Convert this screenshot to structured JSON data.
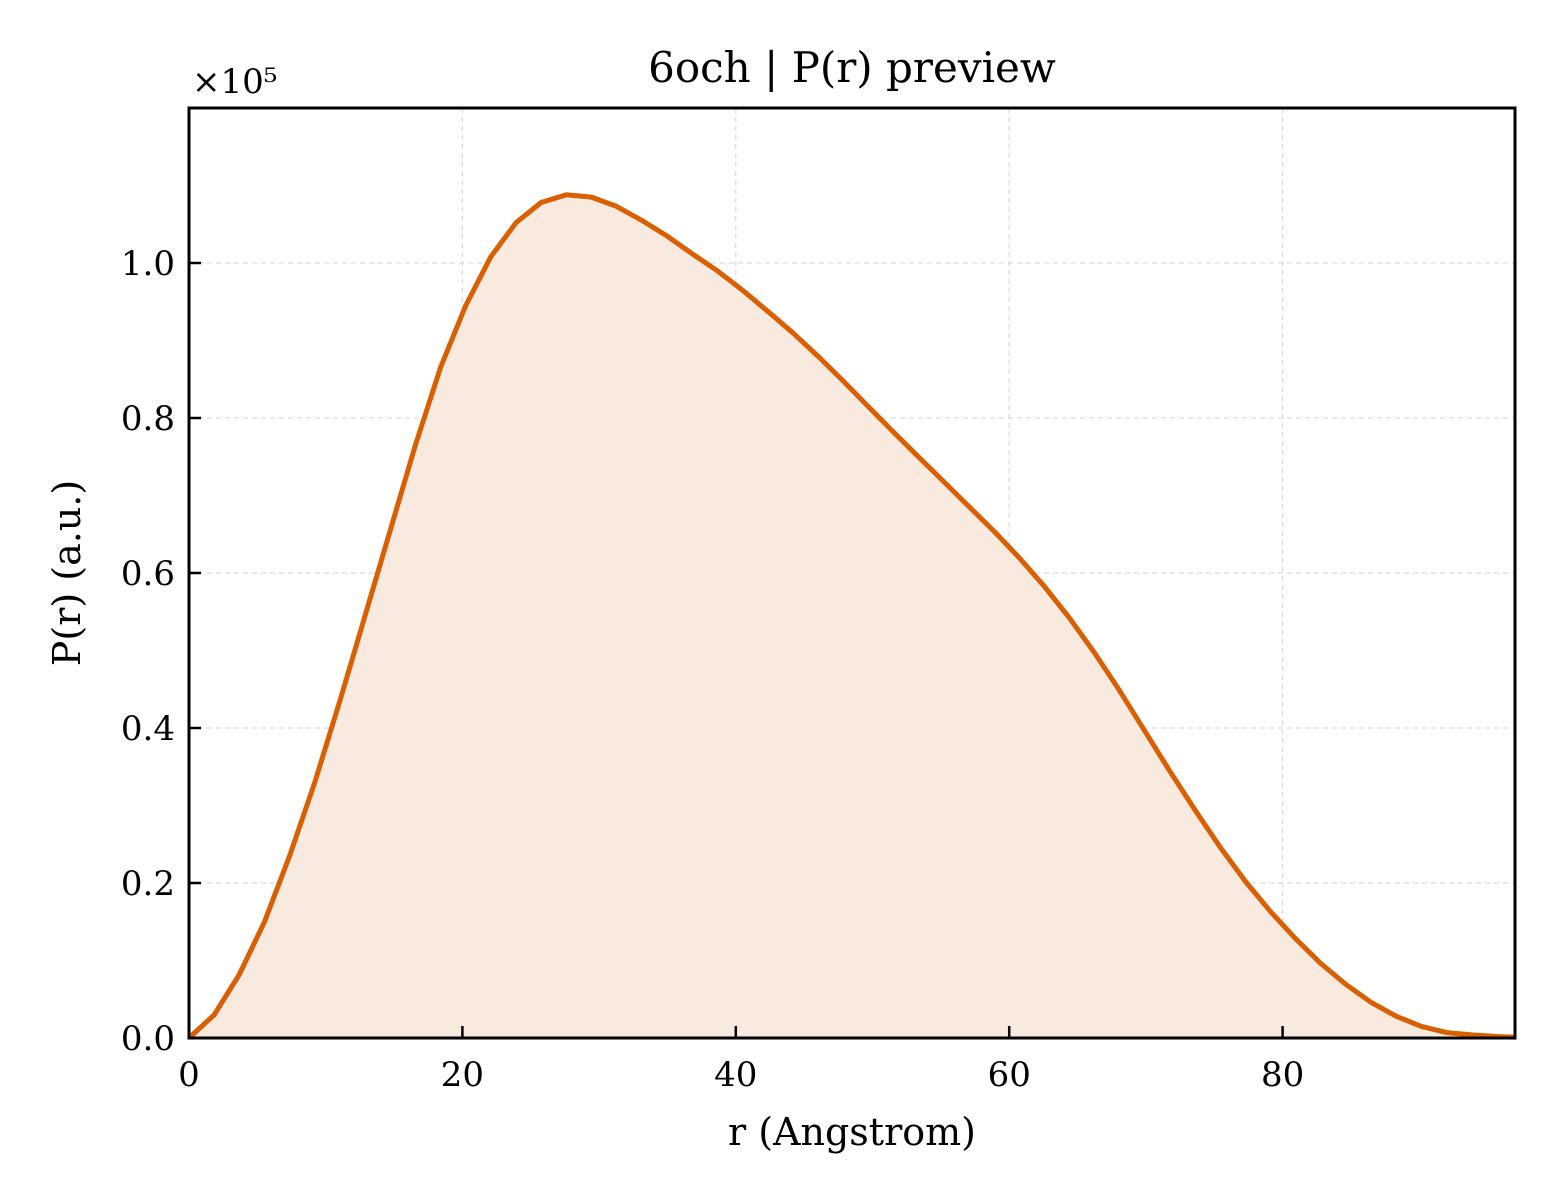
{
  "chart_data": {
    "type": "area",
    "title": "6och | P(r) preview",
    "xlabel": "r (Angstrom)",
    "ylabel": "P(r) (a.u.)",
    "y_scale_label": "×10⁵",
    "y_scale_factor": 100000,
    "xlim": [
      0,
      97
    ],
    "ylim": [
      0,
      1.2
    ],
    "xticks": [
      0,
      20,
      40,
      60,
      80
    ],
    "xtick_labels": [
      "0",
      "20",
      "40",
      "60",
      "80"
    ],
    "yticks": [
      0.0,
      0.2,
      0.4,
      0.6,
      0.8,
      1.0
    ],
    "ytick_labels": [
      "0.0",
      "0.2",
      "0.4",
      "0.6",
      "0.8",
      "1.0"
    ],
    "grid": true,
    "colors": {
      "line": "#d95f02",
      "fill": "#f9eadf",
      "grid": "#d9d9d9"
    },
    "series": [
      {
        "x": [
          0,
          1.84,
          3.68,
          5.52,
          7.36,
          9.2,
          11.04,
          12.88,
          14.72,
          16.56,
          18.4,
          20.24,
          22.08,
          23.92,
          25.76,
          27.6,
          29.44,
          31.28,
          33.12,
          34.96,
          36.8,
          38.64,
          40.48,
          42.32,
          44.16,
          46.0,
          47.84,
          49.68,
          51.52,
          53.36,
          55.2,
          57.04,
          58.88,
          60.72,
          62.56,
          64.4,
          66.24,
          68.08,
          69.92,
          71.76,
          73.6,
          75.44,
          77.28,
          79.12,
          80.96,
          82.8,
          84.64,
          86.48,
          88.32,
          90.16,
          92.0,
          93.84,
          95.68,
          97.0
        ],
        "y": [
          0.0,
          0.03,
          0.082,
          0.15,
          0.235,
          0.33,
          0.435,
          0.545,
          0.655,
          0.765,
          0.865,
          0.945,
          1.008,
          1.052,
          1.078,
          1.088,
          1.085,
          1.073,
          1.055,
          1.035,
          1.012,
          0.99,
          0.965,
          0.938,
          0.91,
          0.88,
          0.848,
          0.815,
          0.782,
          0.75,
          0.718,
          0.686,
          0.654,
          0.62,
          0.583,
          0.542,
          0.497,
          0.448,
          0.396,
          0.344,
          0.294,
          0.246,
          0.202,
          0.163,
          0.128,
          0.096,
          0.069,
          0.046,
          0.028,
          0.015,
          0.007,
          0.004,
          0.002,
          0.001
        ]
      }
    ]
  }
}
